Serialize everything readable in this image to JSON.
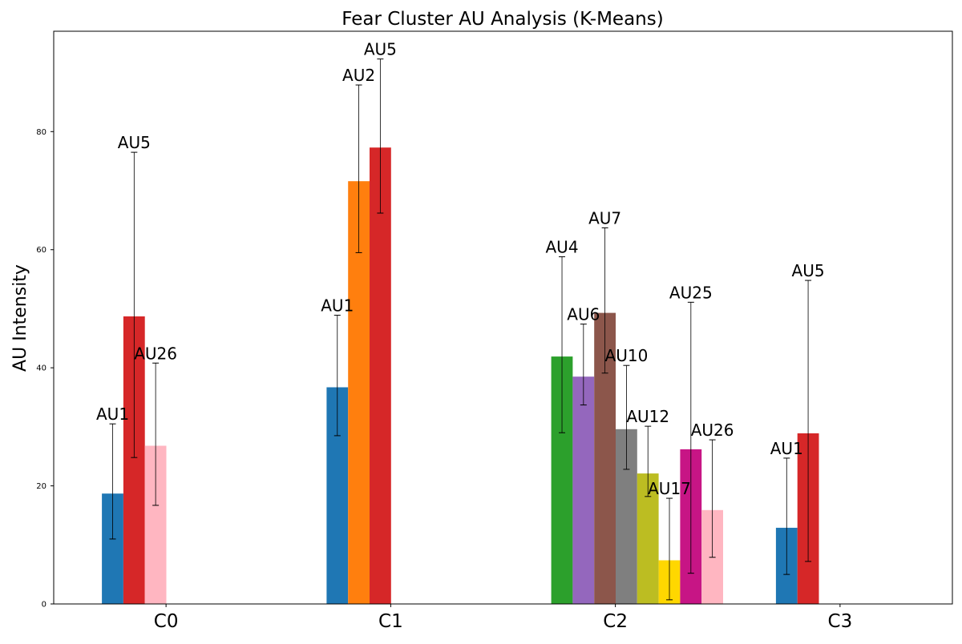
{
  "chart_data": {
    "type": "bar",
    "title": "Fear Cluster AU Analysis (K-Means)",
    "xlabel": "",
    "ylabel": "AU Intensity",
    "categories": [
      "C0",
      "C1",
      "C2",
      "C3"
    ],
    "ylim": [
      0,
      97
    ],
    "yticks": [
      0,
      20,
      40,
      60,
      80
    ],
    "grid": false,
    "legend": "none",
    "groups": [
      {
        "category": "C0",
        "bars": [
          {
            "au": "AU1",
            "value": 18.7,
            "low": 11.0,
            "high": 30.5,
            "color": "#1f77b4",
            "label": "AU1"
          },
          {
            "au": "AU5",
            "value": 48.7,
            "low": 24.8,
            "high": 76.5,
            "color": "#d62728",
            "label": "AU5"
          },
          {
            "au": "AU26",
            "value": 26.8,
            "low": 16.7,
            "high": 40.8,
            "color": "#ffb6c1",
            "label": "AU26"
          }
        ]
      },
      {
        "category": "C1",
        "bars": [
          {
            "au": "AU1",
            "value": 36.7,
            "low": 28.5,
            "high": 48.9,
            "color": "#1f77b4",
            "label": "AU1"
          },
          {
            "au": "AU2",
            "value": 71.6,
            "low": 59.5,
            "high": 87.9,
            "color": "#ff7f0e",
            "label": "AU2"
          },
          {
            "au": "AU5",
            "value": 77.3,
            "low": 66.2,
            "high": 92.3,
            "color": "#d62728",
            "label": "AU5"
          }
        ]
      },
      {
        "category": "C2",
        "bars": [
          {
            "au": "AU4",
            "value": 41.9,
            "low": 29.0,
            "high": 58.8,
            "color": "#2ca02c",
            "label": "AU4"
          },
          {
            "au": "AU6",
            "value": 38.5,
            "low": 33.7,
            "high": 47.4,
            "color": "#9467bd",
            "label": "AU6"
          },
          {
            "au": "AU7",
            "value": 49.3,
            "low": 39.1,
            "high": 63.7,
            "color": "#8c564b",
            "label": "AU7"
          },
          {
            "au": "AU10",
            "value": 29.6,
            "low": 22.8,
            "high": 40.4,
            "color": "#7f7f7f",
            "label": "AU10"
          },
          {
            "au": "AU12",
            "value": 22.1,
            "low": 18.2,
            "high": 30.1,
            "color": "#bcbd22",
            "label": "AU12"
          },
          {
            "au": "AU17",
            "value": 7.4,
            "low": 0.7,
            "high": 17.9,
            "color": "#ffd700",
            "label": "AU17"
          },
          {
            "au": "AU25",
            "value": 26.2,
            "low": 5.2,
            "high": 51.1,
            "color": "#c71585",
            "label": "AU25"
          },
          {
            "au": "AU26",
            "value": 15.9,
            "low": 7.9,
            "high": 27.8,
            "color": "#ffb6c1",
            "label": "AU26"
          }
        ]
      },
      {
        "category": "C3",
        "bars": [
          {
            "au": "AU1",
            "value": 12.9,
            "low": 5.0,
            "high": 24.7,
            "color": "#1f77b4",
            "label": "AU1"
          },
          {
            "au": "AU5",
            "value": 28.9,
            "low": 7.2,
            "high": 54.8,
            "color": "#d62728",
            "label": "AU5"
          }
        ]
      }
    ]
  }
}
